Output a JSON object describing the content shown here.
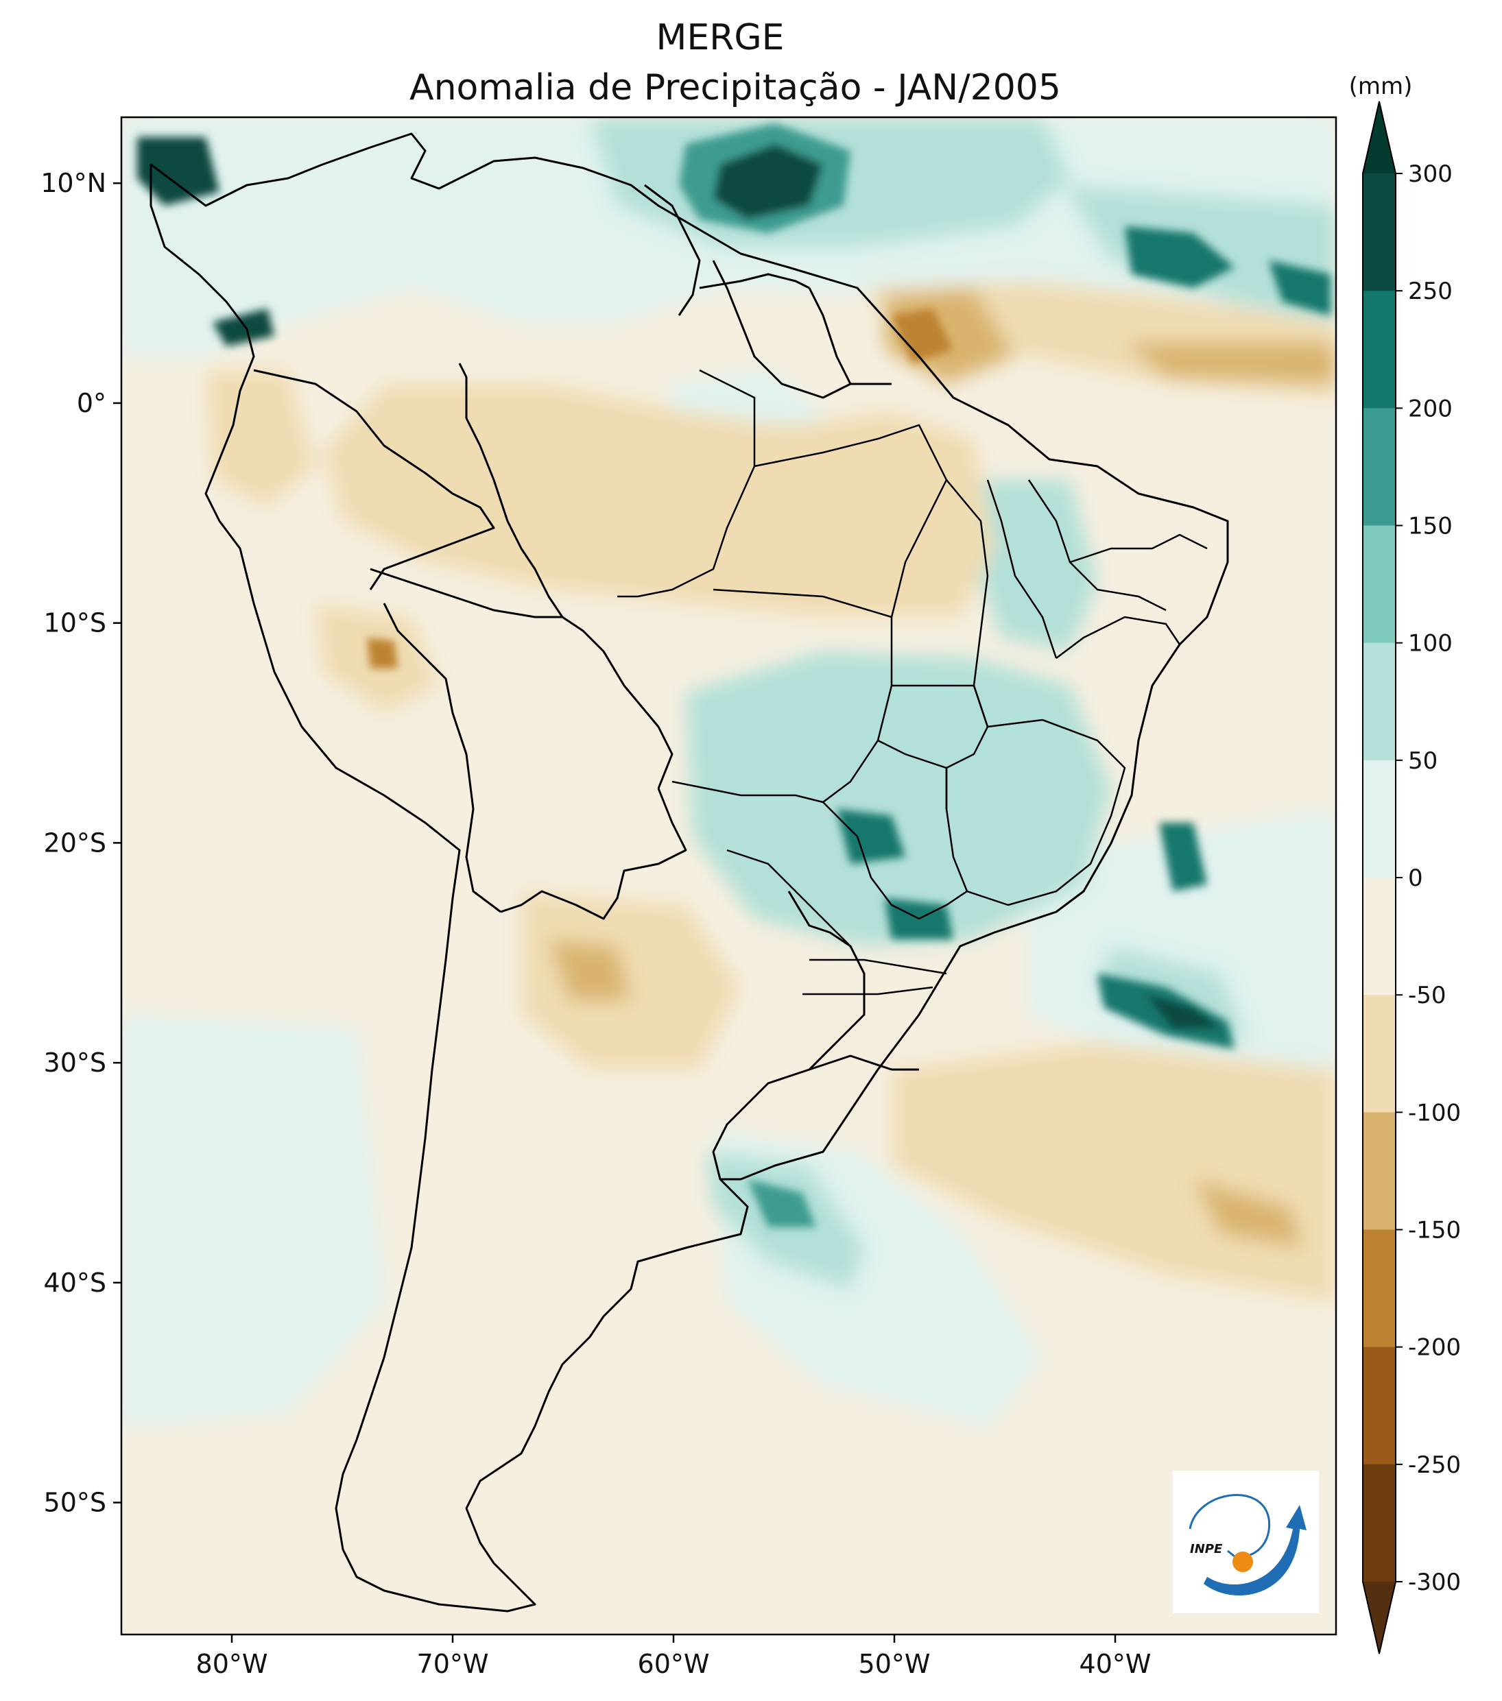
{
  "title": {
    "line1": "MERGE",
    "line2": "Anomalia de Precipitação - JAN/2005"
  },
  "map": {
    "lat_ticks": [
      {
        "lat": 10,
        "label": "10°N"
      },
      {
        "lat": 0,
        "label": "0°"
      },
      {
        "lat": -10,
        "label": "10°S"
      },
      {
        "lat": -20,
        "label": "20°S"
      },
      {
        "lat": -30,
        "label": "30°S"
      },
      {
        "lat": -40,
        "label": "40°S"
      },
      {
        "lat": -50,
        "label": "50°S"
      }
    ],
    "lon_ticks": [
      {
        "lon": -80,
        "label": "80°W"
      },
      {
        "lon": -70,
        "label": "70°W"
      },
      {
        "lon": -60,
        "label": "60°W"
      },
      {
        "lon": -50,
        "label": "50°W"
      },
      {
        "lon": -40,
        "label": "40°W"
      }
    ],
    "extent": {
      "lon_min": -85,
      "lon_max": -30,
      "lat_min": -56,
      "lat_max": 13
    }
  },
  "colorbar": {
    "unit": "(mm)",
    "levels": [
      300,
      250,
      200,
      150,
      100,
      50,
      0,
      -50,
      -100,
      -150,
      -200,
      -250,
      -300
    ],
    "level_labels": [
      "300",
      "250",
      "200",
      "150",
      "100",
      "50",
      "0",
      "-50",
      "-100",
      "-150",
      "-200",
      "-250",
      "-300"
    ],
    "colors": [
      "#0b4a40",
      "#13776c",
      "#3c9b90",
      "#7fc9bc",
      "#b3e0d8",
      "#e1f2ef",
      "#f5efe0",
      "#efdcb2",
      "#dab46e",
      "#bd8333",
      "#9a5a1a",
      "#6b3d0f"
    ],
    "over_color": "#033b30",
    "under_color": "#553010"
  },
  "logo": {
    "text": "INPE"
  }
}
